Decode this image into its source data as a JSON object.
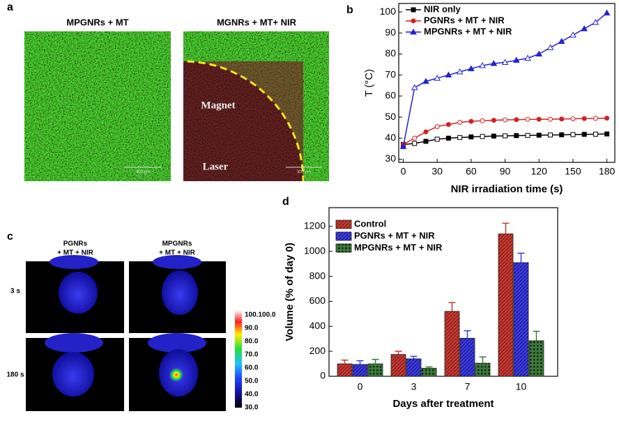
{
  "panel_a": {
    "label": "a",
    "titles": [
      "MPGNRs + MT",
      "MGNRs + MT+ NIR"
    ],
    "annotations": [
      "Magnet",
      "Laser"
    ],
    "scale_bars": [
      "300 µm",
      "300 µm"
    ]
  },
  "panel_c": {
    "label": "c",
    "columns": [
      [
        "PGNRs",
        "+ MT + NIR"
      ],
      [
        "MPGNRs",
        "+ MT + NIR"
      ]
    ],
    "rows": [
      "3 s",
      "180 s"
    ],
    "colorbar_labels": [
      "100.100.0",
      "90.0",
      "80.0",
      "70.0",
      "60.0",
      "50.0",
      "40.0",
      "30.0"
    ]
  },
  "chart_data": [
    {
      "panel_label": "b",
      "type": "line",
      "x_label": "NIR irradiation time (s)",
      "y_label": "T (°C)",
      "x": [
        0,
        10,
        20,
        30,
        40,
        50,
        60,
        70,
        80,
        90,
        100,
        110,
        120,
        130,
        140,
        150,
        160,
        170,
        180
      ],
      "series": [
        {
          "name": "NIR only",
          "color": "#000000",
          "values": [
            37,
            37.5,
            38.5,
            39.5,
            40,
            40.3,
            40.6,
            40.8,
            41,
            41.1,
            41.2,
            41.3,
            41.4,
            41.5,
            41.6,
            41.7,
            41.8,
            41.9,
            42
          ]
        },
        {
          "name": "PGNRs + MT + NIR",
          "color": "#d42020",
          "values": [
            37,
            40,
            43,
            45.5,
            46.5,
            47.5,
            48,
            48.3,
            48.5,
            48.7,
            48.8,
            48.9,
            49,
            49,
            49.1,
            49.2,
            49.3,
            49.4,
            49.5
          ]
        },
        {
          "name": "MPGNRs + MT + NIR",
          "color": "#2020d8",
          "values": [
            36,
            64,
            67,
            68.5,
            70,
            71.5,
            73,
            74.5,
            75.5,
            76,
            77,
            78,
            80,
            83,
            86,
            89,
            92,
            95,
            99.5
          ]
        }
      ],
      "xlim": [
        -4,
        187
      ],
      "ylim": [
        28.5,
        104
      ],
      "xticks": [
        0,
        30,
        60,
        90,
        120,
        150,
        180
      ],
      "yticks": [
        30,
        40,
        50,
        60,
        70,
        80,
        90,
        100
      ],
      "legend": "upper left"
    },
    {
      "panel_label": "d",
      "type": "bar",
      "x_label": "Days after treatment",
      "y_label": "Volume (% of day 0)",
      "categories": [
        "0",
        "3",
        "7",
        "10"
      ],
      "series": [
        {
          "name": "Control",
          "color": "#c83a32",
          "values": [
            100,
            175,
            520,
            1140
          ],
          "errors": [
            30,
            25,
            70,
            85
          ]
        },
        {
          "name": "PGNRs + MT + NIR",
          "color": "#3c3ce0",
          "values": [
            95,
            140,
            305,
            910
          ],
          "errors": [
            30,
            20,
            60,
            75
          ]
        },
        {
          "name": "MPGNRs + MT + NIR",
          "color": "#3d7a3d",
          "values": [
            100,
            65,
            105,
            285
          ],
          "errors": [
            35,
            10,
            50,
            75
          ]
        }
      ],
      "ylim": [
        0,
        1350
      ],
      "yticks": [
        0,
        200,
        400,
        600,
        800,
        1000,
        1200
      ],
      "legend": "upper left"
    }
  ]
}
